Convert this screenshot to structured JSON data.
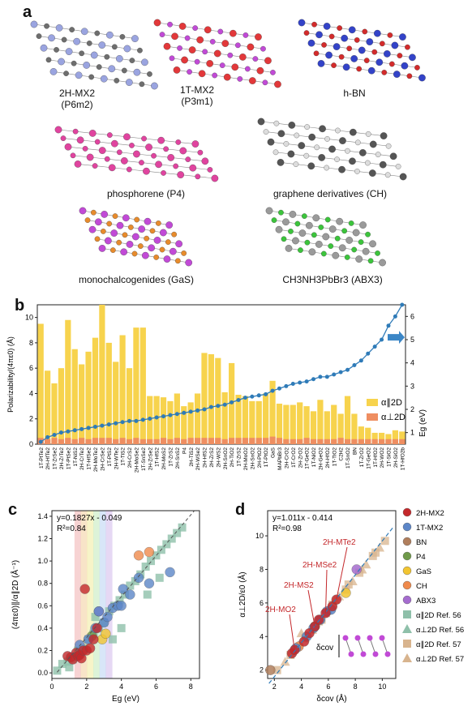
{
  "panel_labels": {
    "a": "a",
    "b": "b",
    "c": "c",
    "d": "d"
  },
  "panel_a": {
    "items": [
      {
        "line1": "2H-MX2",
        "line2": "(P6m2)",
        "color": "#9aa4e0",
        "accent": "#6e6e6e"
      },
      {
        "line1": "1T-MX2",
        "line2": "(P3m1)",
        "color": "#e2383a",
        "accent": "#c14ad6"
      },
      {
        "line1": "h-BN",
        "line2": "",
        "color": "#3343c8",
        "accent": "#d32b2b"
      },
      {
        "line1": "phosphorene (P4)",
        "line2": "",
        "color": "#e0449f",
        "accent": "#e0449f"
      },
      {
        "line1": "graphene derivatives (CH)",
        "line2": "",
        "color": "#555555",
        "accent": "#dddddd"
      },
      {
        "line1": "monochalcogenides (GaS)",
        "line2": "",
        "color": "#c14ad6",
        "accent": "#e78b2c"
      },
      {
        "line1": "CH3NH3PbBr3 (ABX3)",
        "line2": "",
        "color": "#9a9a9a",
        "accent": "#3cc43c"
      }
    ]
  },
  "panel_b": {
    "ylabel_left": "Polarizability/(4πε0) (Å)",
    "ylabel_right": "Eg (eV)",
    "left_ticks": [
      "0",
      "2",
      "4",
      "6",
      "8",
      "10"
    ],
    "right_ticks": [
      "1",
      "2",
      "3",
      "4",
      "5",
      "6"
    ],
    "legend_par": "α∥2D",
    "legend_perp": "α⊥2D",
    "colors": {
      "par": "#f7d34d",
      "perp": "#ef8e61",
      "line": "#2f7bb8"
    }
  },
  "panel_c": {
    "equation": "y=0.1827x - 0.049",
    "r2": "R²=0.84",
    "xlabel": "Eg (eV)",
    "ylabel": "(4πε0)∥/α∥2D (Å⁻¹)",
    "xticks": [
      "0",
      "2",
      "4",
      "6",
      "8"
    ],
    "yticks": [
      "0.0",
      "0.2",
      "0.4",
      "0.6",
      "0.8",
      "1.0",
      "1.2",
      "1.4"
    ]
  },
  "panel_d": {
    "equation": "y=1.011x - 0.414",
    "r2": "R²=0.98",
    "xlabel": "δcov (Å)",
    "ylabel": "α⊥2D/ε0 (Å)",
    "xticks": [
      "2",
      "4",
      "6",
      "8",
      "10"
    ],
    "yticks": [
      "2",
      "4",
      "6",
      "8",
      "10"
    ],
    "annotations": [
      "2H-MTe2",
      "2H-MSe2",
      "2H-MS2",
      "2H-MO2"
    ],
    "inset_label": "δcov",
    "legend": [
      {
        "label": "2H-MX2",
        "color": "#c4282b",
        "shape": "circle"
      },
      {
        "label": "1T-MX2",
        "color": "#5c86c8",
        "shape": "circle"
      },
      {
        "label": "BN",
        "color": "#b07e5c",
        "shape": "circle"
      },
      {
        "label": "P4",
        "color": "#6f9a4a",
        "shape": "circle"
      },
      {
        "label": "GaS",
        "color": "#f2c531",
        "shape": "circle"
      },
      {
        "label": "CH",
        "color": "#ef8a4c",
        "shape": "circle"
      },
      {
        "label": "ABX3",
        "color": "#a56ccf",
        "shape": "circle"
      },
      {
        "label": "α∥2D Ref. 56",
        "color": "#8fc0aa",
        "shape": "square"
      },
      {
        "label": "α⊥2D Ref. 56",
        "color": "#8fc0aa",
        "shape": "triangle"
      },
      {
        "label": "α∥2D Ref. 57",
        "color": "#d8b48e",
        "shape": "square"
      },
      {
        "label": "α⊥2D Ref. 57",
        "color": "#d8b48e",
        "shape": "triangle"
      }
    ]
  },
  "chart_data": [
    {
      "type": "bar",
      "title": "",
      "ylabel": "Polarizability/(4πε0) (Å)",
      "ylabel_right": "Eg (eV)",
      "ylim": [
        0,
        11
      ],
      "ylim_right": [
        0.5,
        6.5
      ],
      "categories": [
        "1T-PtTe2",
        "2H-HfTe2",
        "1T-ZrSe2",
        "2H-ZrTe2",
        "1T-PtSe2",
        "1T-NiS2",
        "2H-CrTe2",
        "1T-HfSe2",
        "2H-MoTe2",
        "2H-CrSe2",
        "1T-PtS2",
        "2H-WTe2",
        "1T-TiS2",
        "2H-CrS2",
        "2H-MoSe2",
        "1T-SnSe2",
        "2H-ZrSe2",
        "1T-HfS2",
        "2H-MoS2",
        "1T-ZrS2",
        "2H-SnS2",
        "P4",
        "2H-TiS2",
        "2H-WSe2",
        "2H-HfS2",
        "2H-ZrS2",
        "2H-WS2",
        "2H-SnO2",
        "2H-TiO2",
        "1T-ZrS2",
        "2H-MoO2",
        "2H-SnO2",
        "2H-PtO2",
        "1T-PtO2",
        "GaS",
        "MAPbBr3",
        "2H-CrO2",
        "1T-CrO2",
        "2H-ZrO2",
        "1T-GeO2",
        "1T-NiO2",
        "2H-GeO2",
        "2H-HfO2",
        "1T-TiO2",
        "C2H2",
        "1T-SnO2",
        "BN",
        "1T-ZrO2",
        "1T-GeO2",
        "1T-HfO2",
        "2H-WO2",
        "1T-SiO2",
        "2H-SiO2",
        "1T-HfO2b"
      ],
      "series": [
        {
          "name": "α∥2D",
          "values": [
            9.5,
            5.8,
            4.8,
            6.0,
            9.8,
            7.5,
            6.3,
            7.3,
            8.4,
            11.0,
            8.0,
            6.5,
            8.6,
            6.0,
            9.2,
            9.2,
            3.8,
            3.8,
            3.7,
            3.4,
            4.0,
            3.0,
            3.3,
            4.0,
            7.2,
            7.1,
            6.8,
            4.1,
            6.4,
            3.9,
            3.8,
            3.4,
            3.4,
            4.0,
            5.0,
            3.2,
            3.1,
            3.1,
            3.3,
            3.0,
            2.6,
            3.5,
            2.6,
            3.1,
            2.4,
            3.8,
            2.4,
            1.4,
            1.3,
            0.9,
            0.9,
            0.8,
            1.1,
            1.0
          ]
        },
        {
          "name": "α⊥2D",
          "values": [
            0.5,
            0.4,
            0.5,
            0.4,
            0.5,
            0.4,
            0.5,
            0.4,
            0.5,
            0.5,
            0.5,
            0.4,
            0.5,
            0.4,
            0.5,
            0.4,
            0.4,
            0.4,
            0.5,
            0.4,
            0.5,
            0.4,
            0.5,
            0.5,
            0.5,
            0.5,
            0.5,
            0.4,
            0.5,
            0.5,
            0.5,
            0.5,
            0.5,
            0.5,
            0.6,
            0.5,
            0.4,
            0.4,
            0.4,
            0.5,
            0.4,
            0.4,
            0.4,
            0.4,
            0.5,
            0.4,
            0.4,
            0.4,
            0.4,
            0.4,
            0.4,
            0.4,
            0.4,
            0.4
          ]
        },
        {
          "name": "Eg",
          "values": [
            0.6,
            0.8,
            0.9,
            1.0,
            1.05,
            1.1,
            1.15,
            1.2,
            1.25,
            1.3,
            1.35,
            1.4,
            1.45,
            1.5,
            1.5,
            1.55,
            1.6,
            1.65,
            1.7,
            1.75,
            1.8,
            1.85,
            1.9,
            1.95,
            2.0,
            2.1,
            2.15,
            2.2,
            2.3,
            2.4,
            2.5,
            2.55,
            2.6,
            2.65,
            2.8,
            2.9,
            3.0,
            3.1,
            3.15,
            3.2,
            3.3,
            3.4,
            3.4,
            3.5,
            3.6,
            3.7,
            3.9,
            4.1,
            4.4,
            4.7,
            5.0,
            5.6,
            6.0,
            6.5
          ]
        }
      ]
    },
    {
      "type": "scatter",
      "xlabel": "Eg (eV)",
      "ylabel": "(4πε0)∥/α∥2D (Å⁻¹)",
      "xlim": [
        0,
        8.5
      ],
      "ylim": [
        -0.05,
        1.45
      ],
      "fit": {
        "slope": 0.1827,
        "intercept": -0.049
      },
      "series": [
        {
          "name": "2H-MX2",
          "x": [
            0.9,
            1.1,
            1.2,
            1.4,
            1.5,
            1.6,
            1.7,
            1.8,
            2.0,
            2.2,
            2.4,
            2.6,
            1.9
          ],
          "y": [
            0.15,
            0.14,
            0.12,
            0.18,
            0.15,
            0.16,
            0.13,
            0.2,
            0.2,
            0.22,
            0.3,
            0.4,
            0.75
          ]
        },
        {
          "name": "1T-MX2",
          "x": [
            1.6,
            2.1,
            2.5,
            2.7,
            3.0,
            3.2,
            3.5,
            3.8,
            4.1,
            4.5,
            5.0,
            5.6,
            6.8,
            4.0
          ],
          "y": [
            0.25,
            0.3,
            0.4,
            0.55,
            0.45,
            0.5,
            0.58,
            0.6,
            0.75,
            0.7,
            0.85,
            0.8,
            0.9,
            0.6
          ]
        },
        {
          "name": "CH",
          "x": [
            5.0,
            5.6
          ],
          "y": [
            1.05,
            1.08
          ]
        },
        {
          "name": "GaS",
          "x": [
            2.9,
            3.1
          ],
          "y": [
            0.3,
            0.35
          ]
        },
        {
          "name": "ABX3",
          "x": [
            2.7
          ],
          "y": [
            0.55
          ]
        },
        {
          "name": "P4",
          "x": [
            2.3
          ],
          "y": [
            0.33
          ]
        },
        {
          "name": "Ref. 56",
          "x": [
            0.3,
            0.6,
            0.9,
            1.2,
            1.5,
            1.8,
            2.1,
            2.4,
            2.7,
            3.0,
            3.3,
            3.6,
            3.9,
            4.2,
            4.5,
            4.8,
            5.1,
            5.4,
            5.7,
            6.0,
            6.3,
            6.6,
            6.9,
            7.2,
            7.5,
            3.5,
            4.0,
            2.5,
            1.0,
            5.5,
            6.2
          ],
          "y": [
            0.02,
            0.08,
            0.1,
            0.12,
            0.2,
            0.22,
            0.3,
            0.35,
            0.4,
            0.45,
            0.55,
            0.6,
            0.65,
            0.7,
            0.78,
            0.82,
            0.88,
            0.95,
            1.0,
            1.05,
            1.1,
            1.15,
            1.2,
            1.25,
            1.3,
            0.3,
            0.4,
            0.5,
            0.05,
            0.7,
            0.85
          ]
        }
      ]
    },
    {
      "type": "scatter",
      "xlabel": "δcov (Å)",
      "ylabel": "α⊥2D/ε0 (Å)",
      "xlim": [
        1.5,
        11
      ],
      "ylim": [
        1.5,
        11.5
      ],
      "fit": {
        "slope": 1.011,
        "intercept": -0.414
      },
      "series": [
        {
          "name": "2H-MX2",
          "x": [
            3.3,
            3.5,
            4.2,
            4.6,
            5.0,
            5.3,
            5.8,
            6.3,
            6.6
          ],
          "y": [
            3.0,
            3.2,
            3.7,
            4.2,
            4.6,
            5.0,
            5.4,
            5.8,
            6.2
          ]
        },
        {
          "name": "1T-MX2",
          "x": [
            3.6,
            4.4,
            4.9,
            5.4,
            5.9,
            6.2
          ],
          "y": [
            3.3,
            4.0,
            4.5,
            5.0,
            5.5,
            5.6
          ]
        },
        {
          "name": "BN",
          "x": [
            1.7
          ],
          "y": [
            2.0
          ]
        },
        {
          "name": "P4",
          "x": [
            5.0
          ],
          "y": [
            4.6
          ]
        },
        {
          "name": "GaS",
          "x": [
            7.3
          ],
          "y": [
            6.6
          ]
        },
        {
          "name": "CH",
          "x": [
            3.8
          ],
          "y": [
            3.4
          ]
        },
        {
          "name": "ABX3",
          "x": [
            8.1
          ],
          "y": [
            8.0
          ]
        },
        {
          "name": "Ref. 57",
          "x": [
            2.2,
            2.8,
            3.2,
            3.8,
            4.3,
            4.8,
            5.3,
            5.8,
            6.3,
            6.8,
            7.3,
            7.8,
            8.3,
            8.8,
            9.3,
            9.8,
            10.2,
            4.0,
            5.5,
            6.5,
            7.5,
            8.5,
            9.5
          ],
          "y": [
            2.0,
            2.5,
            2.9,
            3.5,
            3.9,
            4.4,
            4.9,
            5.4,
            5.9,
            6.4,
            6.8,
            7.3,
            7.8,
            8.3,
            8.8,
            9.3,
            9.7,
            4.2,
            5.0,
            6.2,
            7.1,
            8.0,
            9.0
          ]
        }
      ]
    }
  ]
}
